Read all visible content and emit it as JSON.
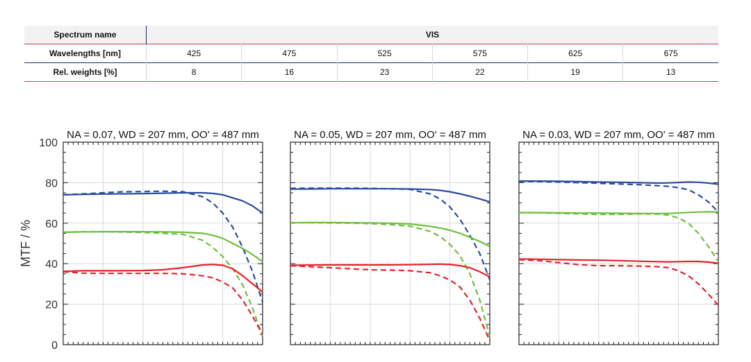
{
  "table": {
    "spectrum_label": "Spectrum name",
    "spectrum_value": "VIS",
    "wavelength_label": "Wavelengths [nm]",
    "wavelengths": [
      "425",
      "475",
      "525",
      "575",
      "625",
      "675"
    ],
    "weights_label": "Rel. weights [%]",
    "weights": [
      "8",
      "16",
      "23",
      "22",
      "19",
      "13"
    ]
  },
  "colors": {
    "blue": "#2a4aa0",
    "green": "#6cbf3c",
    "red": "#e8212a"
  },
  "chart_data": [
    {
      "type": "line",
      "title": "NA = 0.07, WD = 207 mm, OO' = 487 mm",
      "ylabel": "MTF / %",
      "ylim": [
        0,
        100
      ],
      "yticks": [
        "0",
        "20",
        "40",
        "60",
        "80",
        "100"
      ],
      "xlim": [
        0,
        1
      ],
      "grid": true,
      "x": [
        0,
        0.1,
        0.2,
        0.3,
        0.4,
        0.5,
        0.6,
        0.7,
        0.75,
        0.8,
        0.85,
        0.9,
        0.95,
        1.0
      ],
      "series": [
        {
          "color": "blue",
          "style": "solid",
          "values": [
            74,
            74.2,
            74.4,
            74.5,
            74.6,
            74.8,
            75,
            75,
            74.7,
            74,
            72.5,
            71,
            68.5,
            65
          ]
        },
        {
          "color": "blue",
          "style": "dashed",
          "values": [
            74,
            74.5,
            75,
            75.5,
            75.6,
            75.8,
            75.5,
            73,
            70,
            65,
            58,
            48,
            36,
            21
          ]
        },
        {
          "color": "green",
          "style": "solid",
          "values": [
            55.5,
            55.7,
            55.8,
            55.8,
            55.8,
            55.7,
            55.5,
            55,
            54,
            52.5,
            50,
            47.5,
            44.5,
            41
          ]
        },
        {
          "color": "green",
          "style": "dashed",
          "values": [
            55.5,
            55.8,
            55.8,
            55.6,
            55.4,
            55,
            54.5,
            51.5,
            48,
            43.5,
            37.5,
            29.5,
            18,
            4
          ]
        },
        {
          "color": "red",
          "style": "solid",
          "values": [
            36.2,
            36.5,
            36.5,
            36.5,
            36.6,
            37,
            38,
            39.4,
            39.6,
            39.2,
            37.5,
            34,
            30,
            26
          ]
        },
        {
          "color": "red",
          "style": "dashed",
          "values": [
            36,
            35.3,
            35.2,
            35.2,
            35.2,
            35.2,
            35,
            34,
            33,
            31,
            28,
            22,
            14,
            5
          ]
        }
      ]
    },
    {
      "type": "line",
      "title": "NA = 0.05, WD = 207 mm, OO' = 487 mm",
      "ylim": [
        0,
        100
      ],
      "xlim": [
        0,
        1
      ],
      "grid": true,
      "x": [
        0,
        0.1,
        0.2,
        0.3,
        0.4,
        0.5,
        0.6,
        0.7,
        0.75,
        0.8,
        0.85,
        0.9,
        0.95,
        1.0
      ],
      "series": [
        {
          "color": "blue",
          "style": "solid",
          "values": [
            76.8,
            76.9,
            77,
            77,
            77,
            77,
            76.9,
            76.6,
            76.2,
            75.5,
            74.5,
            73.3,
            72,
            70.5
          ]
        },
        {
          "color": "blue",
          "style": "dashed",
          "values": [
            77.2,
            77.3,
            77.3,
            77.3,
            77.2,
            77,
            76.7,
            74.5,
            72,
            68,
            62,
            54,
            45,
            32
          ]
        },
        {
          "color": "green",
          "style": "solid",
          "values": [
            60.2,
            60.3,
            60.3,
            60.2,
            60.1,
            60,
            59.6,
            58.5,
            57.6,
            56.5,
            55,
            53,
            51,
            48.5
          ]
        },
        {
          "color": "green",
          "style": "dashed",
          "values": [
            60.2,
            60.2,
            60.1,
            60,
            59.8,
            59.3,
            58.5,
            56,
            53.5,
            49.5,
            44,
            35,
            22,
            4
          ]
        },
        {
          "color": "red",
          "style": "solid",
          "values": [
            39.2,
            39.3,
            39.4,
            39.4,
            39.4,
            39.4,
            39.5,
            39.7,
            39.8,
            39.6,
            39,
            38,
            36,
            33.5
          ]
        },
        {
          "color": "red",
          "style": "dashed",
          "values": [
            39,
            38.5,
            38,
            37.5,
            37,
            36.8,
            36.5,
            35.5,
            34,
            32,
            28.5,
            22,
            13,
            2
          ]
        }
      ]
    },
    {
      "type": "line",
      "title": "NA = 0.03, WD = 207 mm, OO' = 487 mm",
      "ylim": [
        0,
        100
      ],
      "xlim": [
        0,
        1
      ],
      "grid": true,
      "x": [
        0,
        0.1,
        0.2,
        0.3,
        0.4,
        0.5,
        0.6,
        0.7,
        0.75,
        0.8,
        0.85,
        0.9,
        0.95,
        1.0
      ],
      "series": [
        {
          "color": "blue",
          "style": "solid",
          "values": [
            80.8,
            80.8,
            80.7,
            80.5,
            80.3,
            80.2,
            80,
            79.8,
            79.9,
            80.1,
            80.3,
            80.2,
            79.8,
            79.2
          ]
        },
        {
          "color": "blue",
          "style": "dashed",
          "values": [
            80.6,
            80.5,
            80.3,
            80,
            79.7,
            79.4,
            79,
            78.5,
            78.2,
            77.5,
            76.5,
            74,
            70.5,
            65.5
          ]
        },
        {
          "color": "green",
          "style": "solid",
          "values": [
            65.2,
            65.2,
            65.1,
            65,
            65,
            64.9,
            64.8,
            64.8,
            64.8,
            65,
            65.3,
            65.5,
            65.6,
            65.5
          ]
        },
        {
          "color": "green",
          "style": "dashed",
          "values": [
            65.2,
            65.1,
            64.9,
            64.6,
            64.3,
            64.3,
            64.6,
            64.5,
            64,
            62.5,
            60,
            55,
            48.5,
            41
          ]
        },
        {
          "color": "red",
          "style": "solid",
          "values": [
            42.3,
            42.2,
            42,
            41.8,
            41.7,
            41.5,
            41.2,
            41,
            40.9,
            41,
            41.1,
            41.1,
            40.8,
            40.2
          ]
        },
        {
          "color": "red",
          "style": "dashed",
          "values": [
            42,
            41.5,
            40.5,
            39.5,
            39,
            39,
            38.8,
            38.5,
            38,
            36.5,
            34,
            30,
            25,
            19.5
          ]
        }
      ]
    }
  ]
}
